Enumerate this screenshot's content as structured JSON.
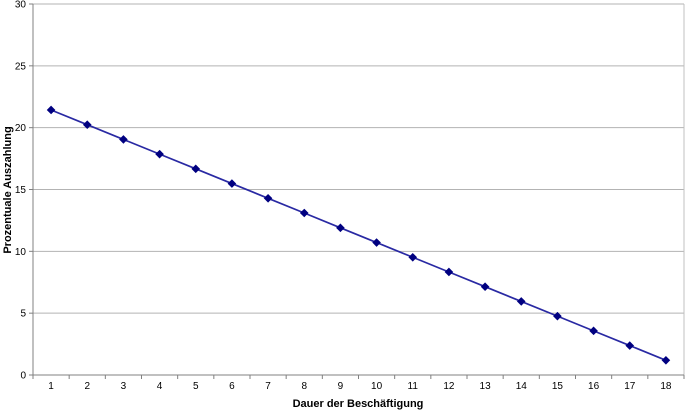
{
  "chart_data": {
    "type": "line",
    "title": "",
    "xlabel": "Dauer der Beschäftigung",
    "ylabel": "Prozentuale Auszahlung",
    "categories": [
      "1",
      "2",
      "3",
      "4",
      "5",
      "6",
      "7",
      "8",
      "9",
      "10",
      "11",
      "12",
      "13",
      "14",
      "15",
      "16",
      "17",
      "18"
    ],
    "series": [
      {
        "name": "Prozentuale Auszahlung",
        "values": [
          21.43,
          20.24,
          19.05,
          17.86,
          16.67,
          15.48,
          14.29,
          13.1,
          11.9,
          10.71,
          9.52,
          8.33,
          7.14,
          5.95,
          4.76,
          3.57,
          2.38,
          1.19
        ]
      }
    ],
    "ylim": [
      0,
      30
    ],
    "ytick_step": 5,
    "yticks": [
      "0",
      "5",
      "10",
      "15",
      "20",
      "25",
      "30"
    ],
    "grid": "horizontal",
    "legend": "none",
    "marker": "diamond",
    "colors": {
      "line": "#2929a3",
      "marker": "#000080",
      "gridline": "#b3b3b3",
      "axis": "#808080",
      "plot_border": "#c0c0c0",
      "text": "#000000"
    }
  }
}
